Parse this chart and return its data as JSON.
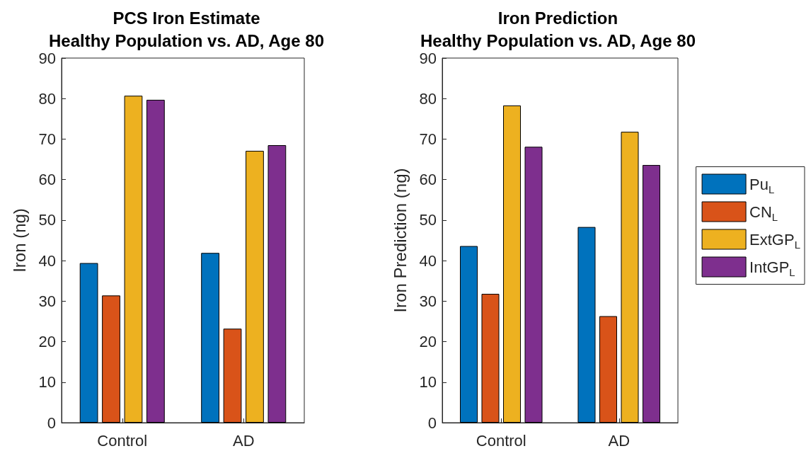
{
  "chart_data": [
    {
      "type": "bar",
      "title": "PCS Iron Estimate\nHealthy Population vs. AD, Age 80",
      "ylabel": "Iron (ng)",
      "categories": [
        "Control",
        "AD"
      ],
      "ylim": [
        0,
        90
      ],
      "yticks": [
        0,
        10,
        20,
        30,
        40,
        50,
        60,
        70,
        80,
        90
      ],
      "grid": false,
      "series": [
        {
          "color": "#0072bd",
          "values": [
            39.4,
            41.9
          ]
        },
        {
          "color": "#d95319",
          "values": [
            31.4,
            23.2
          ]
        },
        {
          "color": "#edb120",
          "values": [
            80.7,
            67.1
          ]
        },
        {
          "color": "#7e2f8e",
          "values": [
            79.7,
            68.5
          ]
        }
      ]
    },
    {
      "type": "bar",
      "title": "Iron Prediction\nHealthy Population vs. AD, Age 80",
      "ylabel": "Iron Prediction (ng)",
      "categories": [
        "Control",
        "AD"
      ],
      "ylim": [
        0,
        90
      ],
      "yticks": [
        0,
        10,
        20,
        30,
        40,
        50,
        60,
        70,
        80,
        90
      ],
      "grid": false,
      "legend": "right",
      "series": [
        {
          "name": "Pu$_{L}$",
          "color": "#0072bd",
          "values": [
            43.6,
            48.3
          ]
        },
        {
          "name": "CN$_{L}$",
          "color": "#d95319",
          "values": [
            31.8,
            26.3
          ]
        },
        {
          "name": "ExtGP$_{L}$",
          "color": "#edb120",
          "values": [
            78.3,
            71.8
          ]
        },
        {
          "name": "IntGP$_{L}$",
          "color": "#7e2f8e",
          "values": [
            68.1,
            63.6
          ]
        }
      ]
    }
  ]
}
